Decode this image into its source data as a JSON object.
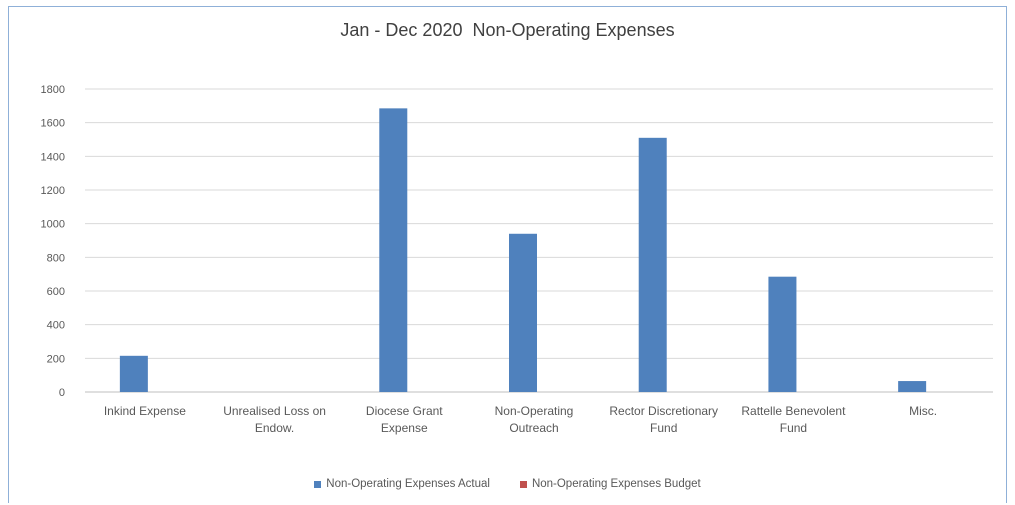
{
  "chart_data": {
    "type": "bar",
    "title": "Jan - Dec 2020  Non-Operating Expenses",
    "categories": [
      [
        "Inkind Expense"
      ],
      [
        "Unrealised Loss on",
        "Endow."
      ],
      [
        "Diocese Grant",
        "Expense"
      ],
      [
        "Non-Operating",
        "Outreach"
      ],
      [
        "Rector Discretionary",
        "Fund"
      ],
      [
        "Rattelle Benevolent",
        "Fund"
      ],
      [
        "Misc."
      ]
    ],
    "series": [
      {
        "name": "Non-Operating Expenses Actual",
        "color": "#4f81bd",
        "values": [
          215,
          0,
          1685,
          940,
          1510,
          685,
          65
        ]
      },
      {
        "name": "Non-Operating Expenses Budget",
        "color": "#c0504d",
        "values": [
          0,
          0,
          0,
          0,
          0,
          0,
          0
        ]
      }
    ],
    "ylim": [
      0,
      1800
    ],
    "yticks": [
      0,
      200,
      400,
      600,
      800,
      1000,
      1200,
      1400,
      1600,
      1800
    ],
    "grid": true,
    "legend_position": "bottom"
  }
}
